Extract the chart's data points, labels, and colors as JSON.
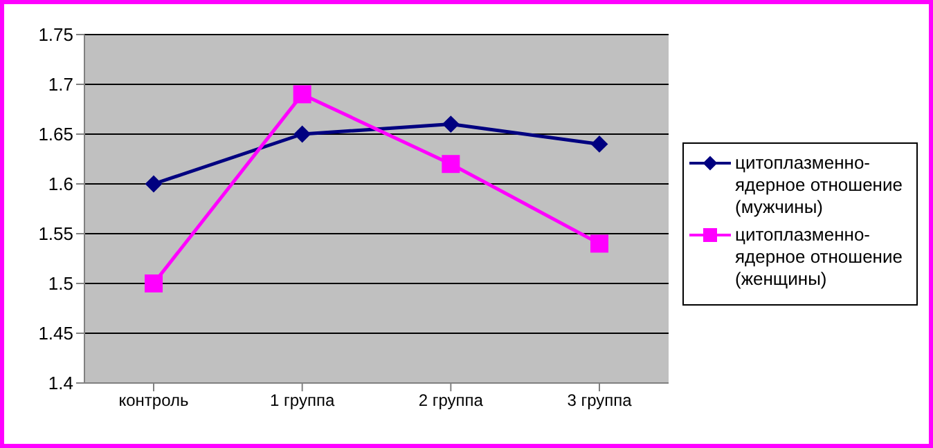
{
  "chart_data": {
    "type": "line",
    "categories": [
      "контроль",
      "1 группа",
      "2 группа",
      "3 группа"
    ],
    "series": [
      {
        "name": "цитоплазменно-ядерное отношение (мужчины)",
        "color": "#000080",
        "marker": "diamond",
        "values": [
          1.6,
          1.65,
          1.66,
          1.64
        ]
      },
      {
        "name": "цитоплазменно-ядерное отношение (женщины)",
        "color": "#ff00ff",
        "marker": "square",
        "values": [
          1.5,
          1.69,
          1.62,
          1.54
        ]
      }
    ],
    "ylim": [
      1.4,
      1.75
    ],
    "yticks": [
      1.4,
      1.45,
      1.5,
      1.55,
      1.6,
      1.65,
      1.7,
      1.75
    ],
    "grid": "y",
    "legend": "right"
  }
}
